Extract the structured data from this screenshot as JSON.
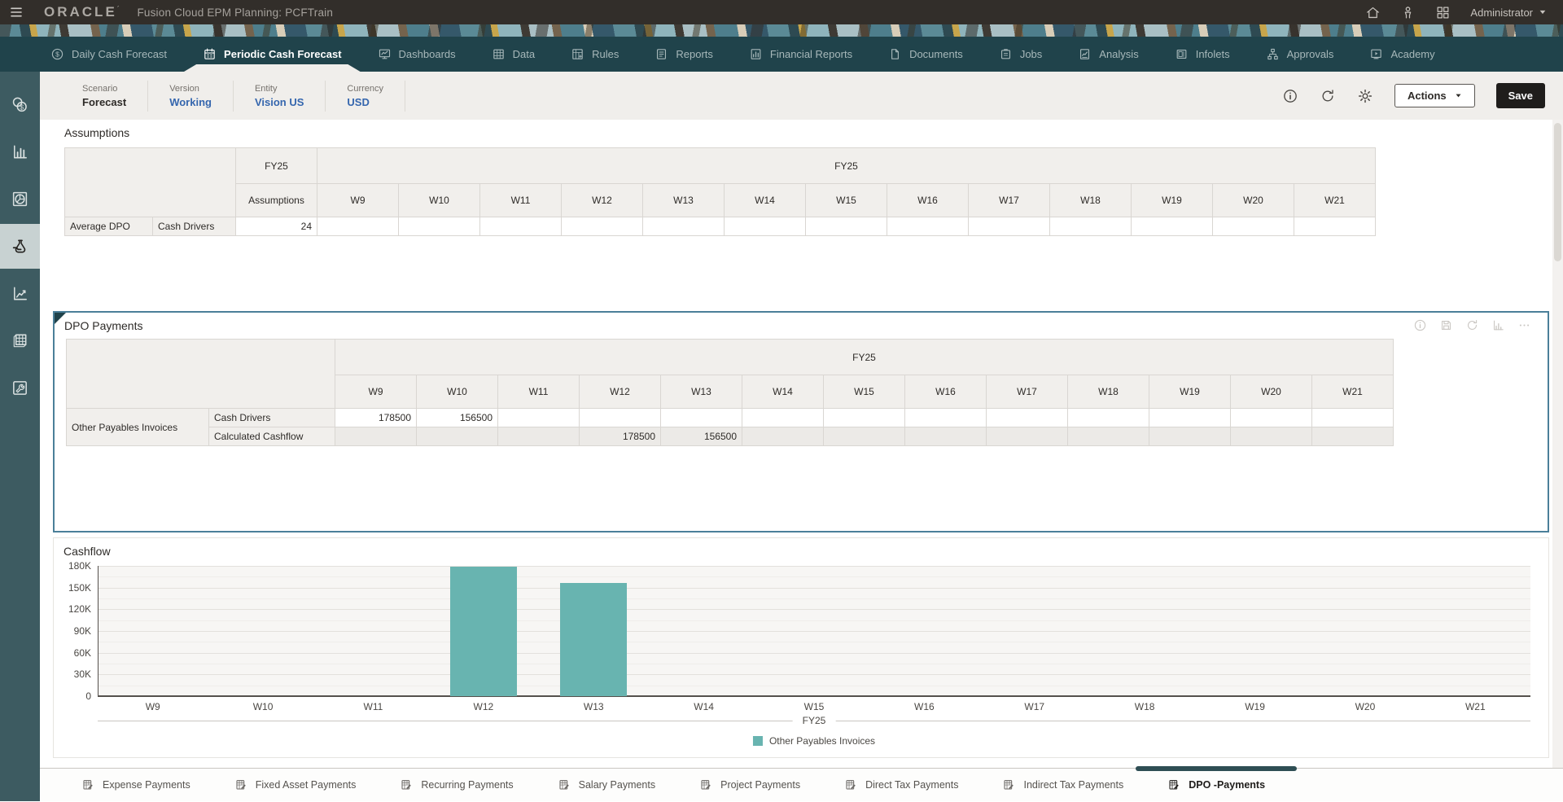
{
  "topbar": {
    "brand": "ORACLE",
    "title": "Fusion Cloud EPM Planning: PCFTrain",
    "user_label": "Administrator"
  },
  "navbar": {
    "tabs": [
      {
        "label": "Daily Cash Forecast",
        "icon": "coin-dollar",
        "active": false
      },
      {
        "label": "Periodic Cash Forecast",
        "icon": "calendar",
        "active": true
      },
      {
        "label": "Dashboards",
        "icon": "dashboard",
        "active": false
      },
      {
        "label": "Data",
        "icon": "data-table",
        "active": false
      },
      {
        "label": "Rules",
        "icon": "rules",
        "active": false
      },
      {
        "label": "Reports",
        "icon": "reports",
        "active": false
      },
      {
        "label": "Financial Reports",
        "icon": "financial-reports",
        "active": false
      },
      {
        "label": "Documents",
        "icon": "documents",
        "active": false
      },
      {
        "label": "Jobs",
        "icon": "jobs",
        "active": false
      },
      {
        "label": "Analysis",
        "icon": "analysis",
        "active": false
      },
      {
        "label": "Infolets",
        "icon": "infolets",
        "active": false
      },
      {
        "label": "Approvals",
        "icon": "approvals",
        "active": false
      },
      {
        "label": "Academy",
        "icon": "academy",
        "active": false
      }
    ]
  },
  "pov": {
    "items": [
      {
        "label": "Scenario",
        "value": "Forecast",
        "is_link": false
      },
      {
        "label": "Version",
        "value": "Working",
        "is_link": true
      },
      {
        "label": "Entity",
        "value": "Vision US",
        "is_link": true
      },
      {
        "label": "Currency",
        "value": "USD",
        "is_link": true
      }
    ],
    "actions_label": "Actions",
    "save_label": "Save"
  },
  "sidebar": {
    "items": [
      {
        "name": "cash-coins",
        "active": false
      },
      {
        "name": "bar-chart",
        "active": false
      },
      {
        "name": "pie-chart",
        "active": false
      },
      {
        "name": "driver-flask",
        "active": true
      },
      {
        "name": "trend-chart",
        "active": false
      },
      {
        "name": "data-grid",
        "active": false
      },
      {
        "name": "tools-wrench",
        "active": false
      }
    ]
  },
  "weeks": [
    "W9",
    "W10",
    "W11",
    "W12",
    "W13",
    "W14",
    "W15",
    "W16",
    "W17",
    "W18",
    "W19",
    "W20",
    "W21"
  ],
  "assumptions": {
    "title": "Assumptions",
    "year_label": "FY25",
    "col_header": "Assumptions",
    "row": {
      "member": "Average DPO",
      "driver": "Cash Drivers",
      "value": "24",
      "week_values": [
        "",
        "",
        "",
        "",
        "",
        "",
        "",
        "",
        "",
        "",
        "",
        "",
        ""
      ]
    }
  },
  "dpo": {
    "title": "DPO Payments",
    "year_label": "FY25",
    "rows": [
      {
        "member": "Other Payables Invoices",
        "label": "Cash Drivers",
        "readonly": false,
        "values": [
          "178500",
          "156500",
          "",
          "",
          "",
          "",
          "",
          "",
          "",
          "",
          "",
          "",
          ""
        ]
      },
      {
        "member": "",
        "label": "Calculated Cashflow",
        "readonly": true,
        "values": [
          "",
          "",
          "",
          "178500",
          "156500",
          "",
          "",
          "",
          "",
          "",
          "",
          "",
          ""
        ]
      }
    ]
  },
  "cashflow": {
    "title": "Cashflow"
  },
  "chart_data": {
    "type": "bar",
    "title": "Cashflow",
    "categories": [
      "W9",
      "W10",
      "W11",
      "W12",
      "W13",
      "W14",
      "W15",
      "W16",
      "W17",
      "W18",
      "W19",
      "W20",
      "W21"
    ],
    "series": [
      {
        "name": "Other Payables Invoices",
        "values": [
          0,
          0,
          0,
          178500,
          156500,
          0,
          0,
          0,
          0,
          0,
          0,
          0,
          0
        ]
      }
    ],
    "x_group_label": "FY25",
    "xlabel": "",
    "ylabel": "",
    "ylim": [
      0,
      180000
    ],
    "yticks": [
      {
        "value": 0,
        "label": "0"
      },
      {
        "value": 30000,
        "label": "30K"
      },
      {
        "value": 60000,
        "label": "60K"
      },
      {
        "value": 90000,
        "label": "90K"
      },
      {
        "value": 120000,
        "label": "120K"
      },
      {
        "value": 150000,
        "label": "150K"
      },
      {
        "value": 180000,
        "label": "180K"
      }
    ],
    "bar_color": "#68B4B0",
    "grid": true,
    "legend_position": "bottom"
  },
  "bottom_tabs": {
    "tabs": [
      {
        "label": "Expense Payments",
        "active": false
      },
      {
        "label": "Fixed Asset Payments",
        "active": false
      },
      {
        "label": "Recurring Payments",
        "active": false
      },
      {
        "label": "Salary Payments",
        "active": false
      },
      {
        "label": "Project Payments",
        "active": false
      },
      {
        "label": "Direct Tax Payments",
        "active": false
      },
      {
        "label": "Indirect Tax Payments",
        "active": false
      },
      {
        "label": "DPO -Payments",
        "active": true
      }
    ]
  }
}
